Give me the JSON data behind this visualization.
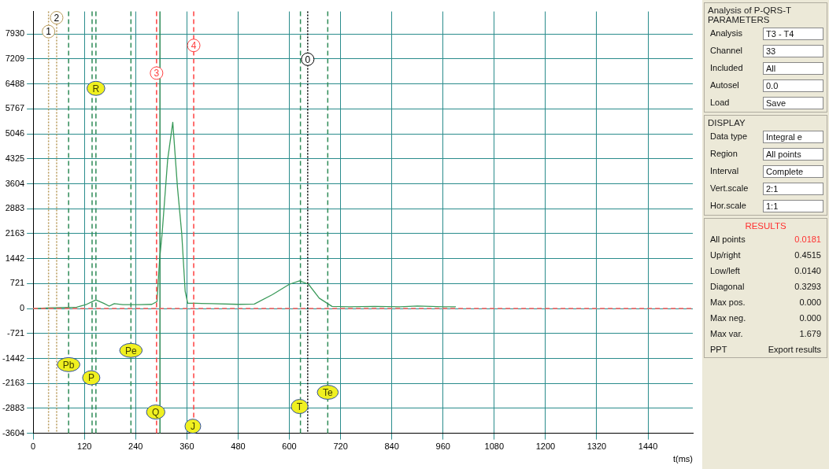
{
  "chart_data": [
    {
      "type": "line",
      "xlabel": "t(ms)",
      "series": [
        {
          "type": "line",
          "color": "#3a9a5a",
          "x": [
            0,
            40,
            80,
            102,
            125,
            147,
            165,
            178,
            190,
            210,
            250,
            278,
            290,
            296,
            302,
            315,
            327,
            338,
            348,
            356,
            362,
            380,
            420,
            480,
            518,
            560,
            600,
            624,
            645,
            670,
            700,
            740,
            800,
            860,
            900,
            960,
            990
          ],
          "values": [
            0,
            20,
            30,
            40,
            120,
            250,
            150,
            70,
            140,
            110,
            110,
            120,
            200,
            1400,
            2160,
            4300,
            5380,
            3500,
            2160,
            500,
            150,
            150,
            140,
            120,
            130,
            400,
            700,
            800,
            700,
            300,
            60,
            50,
            60,
            50,
            70,
            50,
            50
          ]
        }
      ],
      "xlim": [
        0,
        1545
      ],
      "xticks": [
        0,
        120,
        240,
        360,
        480,
        600,
        720,
        840,
        960,
        1080,
        1200,
        1320,
        1440
      ],
      "ylim": [
        -3604,
        8580
      ],
      "yticks": [
        -3604,
        -2883,
        -2163,
        -1442,
        -721,
        0,
        721,
        1442,
        2163,
        2883,
        3604,
        4325,
        5046,
        5767,
        6488,
        7209,
        7930
      ],
      "grid": true,
      "legend": false,
      "marker": "none",
      "line_style": "solid",
      "ref_lines": [
        {
          "axis": "x",
          "value": 36,
          "color": "#b89a5a",
          "line_style": "dotted"
        },
        {
          "axis": "x",
          "value": 55,
          "color": "#b89a5a",
          "line_style": "dotted"
        },
        {
          "axis": "x",
          "value": 289,
          "color": "#ff4040",
          "line_style": "dashed"
        },
        {
          "axis": "x",
          "value": 376,
          "color": "#ff4040",
          "line_style": "dashed"
        },
        {
          "axis": "x",
          "value": 643,
          "color": "#000000",
          "line_style": "dotted"
        },
        {
          "axis": "x",
          "value": 83,
          "color": "#2e8b57",
          "line_style": "dashed"
        },
        {
          "axis": "x",
          "value": 138,
          "color": "#2e8b57",
          "line_style": "dashed"
        },
        {
          "axis": "x",
          "value": 147,
          "color": "#2e8b57",
          "line_style": "dashed"
        },
        {
          "axis": "x",
          "value": 229,
          "color": "#2e8b57",
          "line_style": "dashed"
        },
        {
          "axis": "x",
          "value": 297,
          "color": "#2e8b57",
          "line_style": "solid"
        },
        {
          "axis": "x",
          "value": 626,
          "color": "#2e8b57",
          "line_style": "dashed"
        },
        {
          "axis": "x",
          "value": 690,
          "color": "#2e8b57",
          "line_style": "dashed"
        },
        {
          "axis": "y",
          "value": 0,
          "color": "#ff6060",
          "line_style": "dashed"
        }
      ],
      "annotations": [
        {
          "text": "1",
          "x": 36,
          "y": 8000
        },
        {
          "text": "2",
          "x": 55,
          "y": 8400
        },
        {
          "text": "3",
          "x": 289,
          "y": 6800
        },
        {
          "text": "4",
          "x": 376,
          "y": 7600
        },
        {
          "text": "0",
          "x": 643,
          "y": 7200
        },
        {
          "text": "R",
          "x": 147,
          "y": 6360
        },
        {
          "text": "Pb",
          "x": 83,
          "y": -1620
        },
        {
          "text": "P",
          "x": 136,
          "y": -2000
        },
        {
          "text": "Pe",
          "x": 229,
          "y": -1210
        },
        {
          "text": "Q",
          "x": 287,
          "y": -2990
        },
        {
          "text": "J",
          "x": 374,
          "y": -3400
        },
        {
          "text": "T",
          "x": 624,
          "y": -2830
        },
        {
          "text": "Te",
          "x": 690,
          "y": -2420
        }
      ]
    },
    {
      "type": "other",
      "title": "Analysis of P-QRS-T PARAMETERS",
      "annotations": [
        "Analysis",
        "T3 - T4",
        "Channel",
        "33",
        "Included",
        "All",
        "Autosel",
        "0.0",
        "Load",
        "Save"
      ]
    },
    {
      "type": "other",
      "title": "DISPLAY",
      "annotations": [
        "Data type",
        "Integral e",
        "Region",
        "All points",
        "Interval",
        "Complete",
        "Vert.scale",
        "2:1",
        "Hor.scale",
        "1:1"
      ]
    },
    {
      "type": "other",
      "title": "RESULTS",
      "annotations": [
        "All points",
        "0.0181",
        "Up/right",
        "0.4515",
        "Low/left",
        "0.0140",
        "Diagonal",
        "0.3293",
        "Max pos.",
        "0.000",
        "Max neg.",
        "0.000",
        "Max var.",
        "1.679",
        "PPT",
        "Export results"
      ]
    }
  ]
}
